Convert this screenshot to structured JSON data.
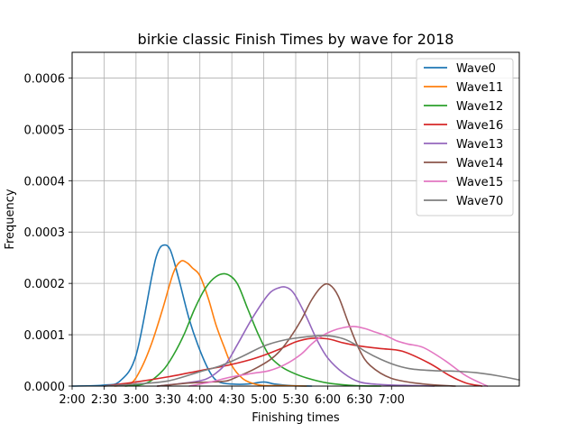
{
  "chart_data": {
    "type": "line",
    "title": "birkie classic Finish Times by wave for 2018",
    "xlabel": "Finishing times",
    "ylabel": "Frequency",
    "xlim": [
      120,
      540
    ],
    "ylim": [
      0,
      0.00065
    ],
    "x_ticks": [
      {
        "value": 120,
        "label": "2:00"
      },
      {
        "value": 150,
        "label": "2:30"
      },
      {
        "value": 180,
        "label": "3:00"
      },
      {
        "value": 210,
        "label": "3:30"
      },
      {
        "value": 240,
        "label": "4:00"
      },
      {
        "value": 270,
        "label": "4:30"
      },
      {
        "value": 300,
        "label": "5:00"
      },
      {
        "value": 330,
        "label": "5:30"
      },
      {
        "value": 360,
        "label": "6:00"
      },
      {
        "value": 390,
        "label": "6:30"
      },
      {
        "value": 420,
        "label": "7:00"
      }
    ],
    "y_ticks": [
      {
        "value": 0,
        "label": "0.0000"
      },
      {
        "value": 0.0001,
        "label": "0.0001"
      },
      {
        "value": 0.0002,
        "label": "0.0002"
      },
      {
        "value": 0.0003,
        "label": "0.0003"
      },
      {
        "value": 0.0004,
        "label": "0.0004"
      },
      {
        "value": 0.0005,
        "label": "0.0005"
      },
      {
        "value": 0.0006,
        "label": "0.0006"
      }
    ],
    "grid": true,
    "legend_position": "upper right",
    "series": [
      {
        "name": "Wave0",
        "color": "#1f77b4",
        "x": [
          120,
          150,
          165,
          180,
          195,
          200,
          205,
          212,
          220,
          230,
          240,
          250,
          258,
          270,
          285,
          300,
          310,
          325,
          345
        ],
        "y": [
          0,
          2e-06,
          1e-05,
          6e-05,
          0.000215,
          0.000258,
          0.000274,
          0.000266,
          0.00021,
          0.00013,
          7e-05,
          2.5e-05,
          8e-06,
          4e-06,
          4e-06,
          8e-06,
          4e-06,
          1e-06,
          0
        ]
      },
      {
        "name": "Wave11",
        "color": "#ff7f0e",
        "x": [
          160,
          175,
          185,
          195,
          205,
          215,
          222,
          228,
          233,
          240,
          248,
          255,
          263,
          270,
          280,
          290,
          300,
          315,
          340
        ],
        "y": [
          0,
          5e-06,
          3.5e-05,
          8.5e-05,
          0.00015,
          0.00022,
          0.000243,
          0.00024,
          0.00023,
          0.000215,
          0.00017,
          0.00012,
          7.5e-05,
          4e-05,
          1.5e-05,
          5e-06,
          1e-06,
          1e-06,
          0
        ]
      },
      {
        "name": "Wave12",
        "color": "#2ca02c",
        "x": [
          170,
          190,
          205,
          215,
          225,
          235,
          245,
          255,
          265,
          275,
          285,
          295,
          305,
          315,
          325,
          340,
          360,
          385,
          410
        ],
        "y": [
          0,
          6e-06,
          3e-05,
          6e-05,
          0.0001,
          0.00015,
          0.00019,
          0.000213,
          0.000218,
          0.0002,
          0.00015,
          0.0001,
          6e-05,
          4e-05,
          2.8e-05,
          1.6e-05,
          6e-06,
          1e-06,
          0
        ]
      },
      {
        "name": "Wave16",
        "color": "#d62728",
        "x": [
          150,
          180,
          210,
          240,
          265,
          285,
          300,
          315,
          330,
          345,
          360,
          375,
          390,
          410,
          430,
          455,
          475,
          490,
          505
        ],
        "y": [
          0,
          8e-06,
          1.8e-05,
          3e-05,
          4e-05,
          5e-05,
          6e-05,
          7.2e-05,
          8.6e-05,
          9.3e-05,
          9.2e-05,
          8.4e-05,
          7.8e-05,
          7.3e-05,
          6.8e-05,
          4.5e-05,
          2e-05,
          6e-06,
          0
        ]
      },
      {
        "name": "Wave13",
        "color": "#9467bd",
        "x": [
          200,
          230,
          245,
          255,
          265,
          275,
          290,
          305,
          315,
          320,
          325,
          330,
          340,
          350,
          360,
          375,
          390,
          410,
          440,
          460
        ],
        "y": [
          0,
          7e-06,
          1.3e-05,
          2.5e-05,
          4.5e-05,
          8e-05,
          0.000135,
          0.00018,
          0.000192,
          0.000193,
          0.000188,
          0.000175,
          0.000135,
          9e-05,
          5.5e-05,
          2.5e-05,
          8e-06,
          3e-06,
          1e-06,
          0
        ]
      },
      {
        "name": "Wave14",
        "color": "#8c564b",
        "x": [
          200,
          230,
          250,
          265,
          275,
          290,
          305,
          315,
          325,
          335,
          345,
          355,
          362,
          370,
          380,
          390,
          400,
          420,
          450,
          480
        ],
        "y": [
          0,
          6e-06,
          8e-06,
          1e-05,
          1.8e-05,
          3.2e-05,
          5e-05,
          6.8e-05,
          9.5e-05,
          0.000128,
          0.000168,
          0.000195,
          0.000197,
          0.000175,
          0.00012,
          7e-05,
          4e-05,
          1.5e-05,
          4e-06,
          0
        ]
      },
      {
        "name": "Wave15",
        "color": "#e377c2",
        "x": [
          230,
          250,
          270,
          290,
          305,
          320,
          335,
          345,
          355,
          365,
          375,
          385,
          395,
          405,
          415,
          425,
          435,
          450,
          470,
          490,
          510
        ],
        "y": [
          0,
          8e-06,
          1.8e-05,
          2.5e-05,
          3e-05,
          4.2e-05,
          6.2e-05,
          8.2e-05,
          9.8e-05,
          0.000108,
          0.000114,
          0.000116,
          0.000112,
          0.000105,
          9.8e-05,
          8.8e-05,
          8.2e-05,
          7.5e-05,
          5e-05,
          2e-05,
          0
        ]
      },
      {
        "name": "Wave70",
        "color": "#7f7f7f",
        "x": [
          150,
          180,
          210,
          240,
          260,
          280,
          300,
          320,
          340,
          355,
          365,
          375,
          385,
          395,
          410,
          425,
          440,
          460,
          480,
          500,
          520,
          540
        ],
        "y": [
          0,
          4e-06,
          1e-05,
          2.8e-05,
          4e-05,
          5.8e-05,
          7.8e-05,
          9e-05,
          9.6e-05,
          9.8e-05,
          9.7e-05,
          9.2e-05,
          8.2e-05,
          6.8e-05,
          5.2e-05,
          4e-05,
          3.3e-05,
          3e-05,
          2.9e-05,
          2.6e-05,
          2e-05,
          1.2e-05
        ]
      }
    ]
  }
}
